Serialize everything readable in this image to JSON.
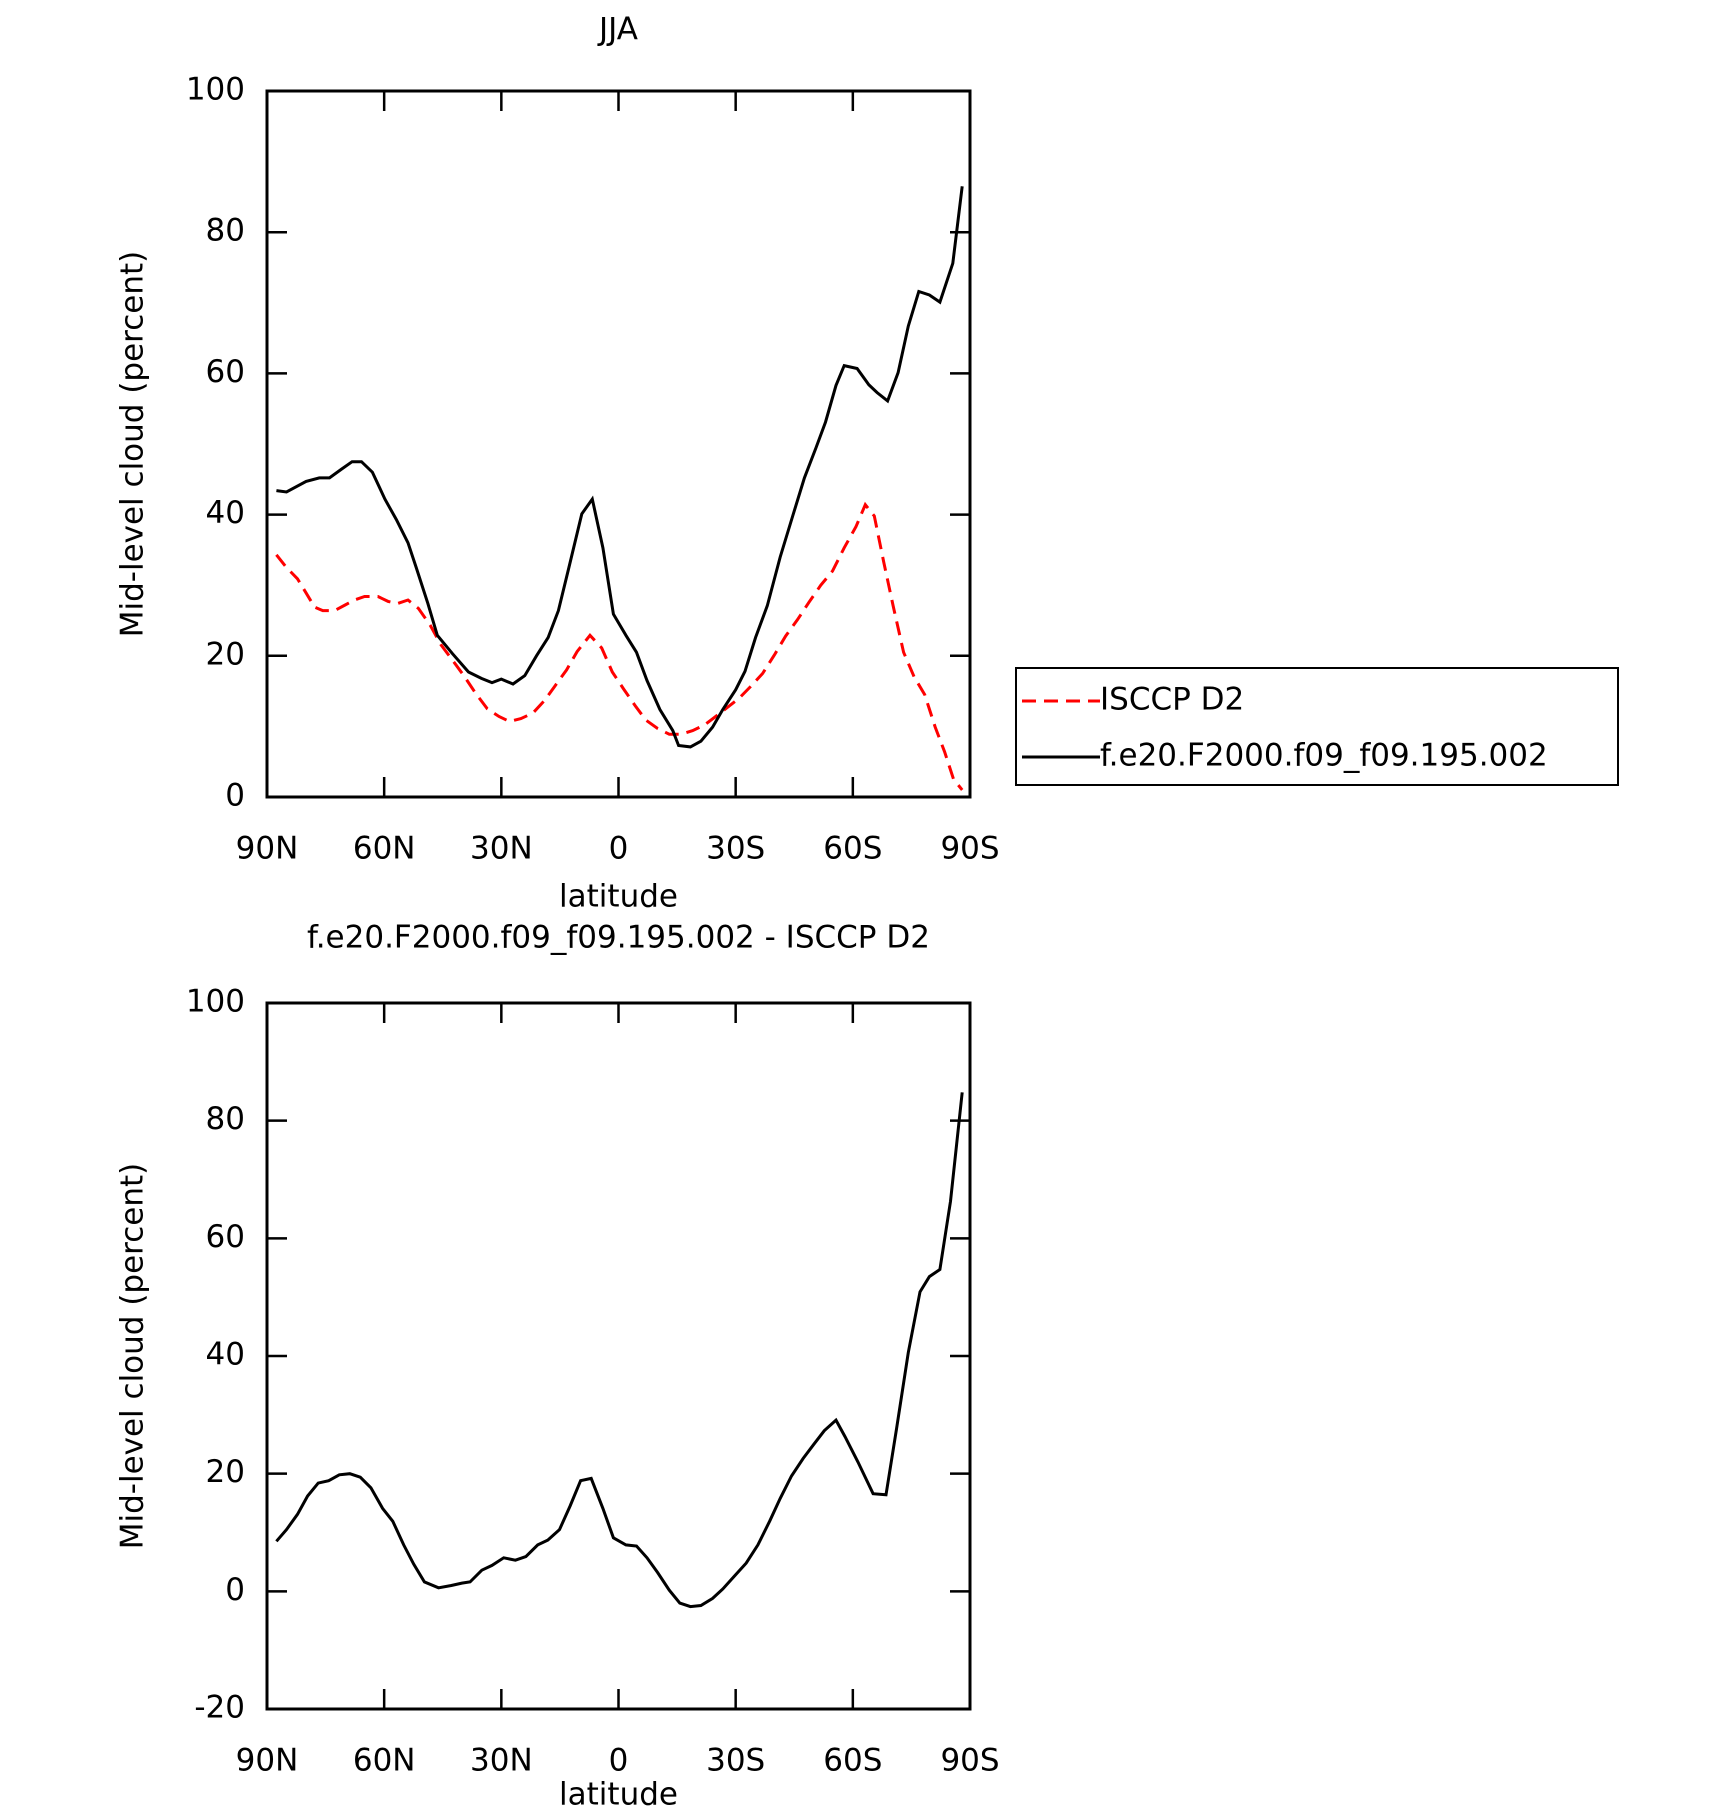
{
  "chart_data": [
    {
      "type": "line",
      "title": "JJA",
      "xlabel": "latitude",
      "ylabel": "Mid-level cloud (percent)",
      "xlim": [
        90,
        -90
      ],
      "ylim": [
        0,
        100
      ],
      "xticks": [
        {
          "value": 90,
          "label": "90N"
        },
        {
          "value": 60,
          "label": "60N"
        },
        {
          "value": 30,
          "label": "30N"
        },
        0,
        {
          "value": -30,
          "label": "30S"
        },
        {
          "value": -60,
          "label": "60S"
        },
        {
          "value": -90,
          "label": "90S"
        }
      ],
      "yticks": [
        0,
        20,
        40,
        60,
        80,
        100
      ],
      "legend": "outside-right",
      "series": [
        {
          "name": "ISCCP D2",
          "color": "#ff0000",
          "linestyle": "dashed",
          "x": [
            87.6,
            85,
            82.2,
            80.1,
            77.8,
            75.7,
            72.7,
            70,
            67.6,
            65,
            61.6,
            59,
            56.6,
            53.9,
            51.2,
            48.2,
            45.5,
            42.8,
            39.6,
            36.6,
            33.6,
            30.6,
            27.9,
            25,
            21.9,
            18.9,
            16.3,
            13.3,
            10.6,
            7.3,
            4.3,
            1.6,
            -1.3,
            -4.3,
            -7,
            -10,
            -13,
            -16,
            -19,
            -22,
            -24.9,
            -27.9,
            -30.9,
            -33.9,
            -36.9,
            -39.9,
            -42.8,
            -45.8,
            -48.8,
            -51.8,
            -54.8,
            -57.8,
            -60.8,
            -63.2,
            -65.5,
            -67.9,
            -70.3,
            -73,
            -75.7,
            -78.4,
            -81.1,
            -83.5,
            -85.8,
            -88
          ],
          "values": [
            34.3,
            32.5,
            30.9,
            29,
            26.9,
            26.4,
            26.4,
            27.2,
            27.9,
            28.4,
            28.4,
            27.7,
            27.4,
            27.9,
            26.7,
            24.3,
            21.6,
            19.6,
            17.2,
            14.7,
            12.5,
            11.4,
            10.7,
            11.1,
            11.9,
            13.7,
            15.7,
            18,
            20.6,
            22.9,
            21.1,
            17.7,
            15.3,
            12.9,
            10.9,
            9.7,
            8.9,
            8.9,
            9.4,
            10.2,
            11.4,
            12.7,
            14,
            15.7,
            17.5,
            20.1,
            22.8,
            25.1,
            27.6,
            30,
            32,
            35.3,
            38.3,
            41.4,
            39.8,
            33.3,
            27.1,
            20.5,
            17,
            14.5,
            9.9,
            6.4,
            2.5,
            1
          ]
        },
        {
          "name": "f.e20.F2000.f09_f09.195.002",
          "color": "#000000",
          "linestyle": "solid",
          "x": [
            87.6,
            85,
            80,
            76.6,
            74,
            71,
            68.2,
            65.8,
            63,
            59.8,
            56.9,
            53.9,
            51.8,
            48.8,
            46.4,
            42.5,
            38.4,
            35.1,
            32.4,
            30,
            27,
            24,
            21,
            18,
            15.4,
            12.7,
            9.4,
            6.7,
            4,
            1.3,
            -1.9,
            -4.6,
            -7.3,
            -10.6,
            -13.9,
            -15.4,
            -18.4,
            -21.1,
            -24.1,
            -26.7,
            -30,
            -32.4,
            -35.1,
            -38.1,
            -41.4,
            -44.6,
            -47.6,
            -50.6,
            -53,
            -55.7,
            -57.8,
            -61.1,
            -64.1,
            -66.2,
            -68.9,
            -71.6,
            -74.2,
            -76.9,
            -79.6,
            -82.3,
            -85.6,
            -88
          ],
          "values": [
            43.4,
            43.2,
            44.7,
            45.2,
            45.2,
            46.4,
            47.5,
            47.5,
            46,
            42.2,
            39.3,
            36,
            32.5,
            27.4,
            22.9,
            20.3,
            17.7,
            16.8,
            16.2,
            16.7,
            16,
            17.2,
            20,
            22.6,
            26.4,
            32.5,
            40.1,
            42.2,
            35.3,
            25.9,
            22.9,
            20.5,
            16.5,
            12.4,
            9.4,
            7.3,
            7.1,
            7.9,
            9.9,
            12.4,
            15.2,
            17.8,
            22.6,
            27.1,
            34,
            39.8,
            45.2,
            49.5,
            53.1,
            58.3,
            61.1,
            60.7,
            58.4,
            57.3,
            56.1,
            60.1,
            66.7,
            71.6,
            71.1,
            70.1,
            75.6,
            86.5
          ]
        }
      ]
    },
    {
      "type": "line",
      "title": "f.e20.F2000.f09_f09.195.002 - ISCCP D2",
      "xlabel": "latitude",
      "ylabel": "Mid-level cloud (percent)",
      "xlim": [
        90,
        -90
      ],
      "ylim": [
        -20,
        100
      ],
      "xticks": [
        {
          "value": 90,
          "label": "90N"
        },
        {
          "value": 60,
          "label": "60N"
        },
        {
          "value": 30,
          "label": "30N"
        },
        0,
        {
          "value": -30,
          "label": "30S"
        },
        {
          "value": -60,
          "label": "60S"
        },
        {
          "value": -90,
          "label": "90S"
        }
      ],
      "yticks": [
        -20,
        0,
        20,
        40,
        60,
        80,
        100
      ],
      "series": [
        {
          "color": "#000000",
          "linestyle": "solid",
          "x": [
            87.6,
            85,
            82.2,
            79.6,
            76.9,
            74.2,
            71.5,
            68.8,
            66.1,
            63.4,
            60.4,
            57.8,
            55,
            52.4,
            49.7,
            46.1,
            42.8,
            40.1,
            38,
            35,
            32.4,
            29.4,
            26.4,
            23.7,
            20.7,
            18.1,
            15.1,
            12.4,
            9.7,
            7,
            4,
            1.3,
            -1.9,
            -4.6,
            -7.3,
            -10,
            -13,
            -15.7,
            -18.4,
            -21.1,
            -24.1,
            -26.7,
            -29.7,
            -32.7,
            -35.7,
            -38.7,
            -41.4,
            -44.3,
            -47.3,
            -50,
            -52.7,
            -55.7,
            -58,
            -61.3,
            -65.2,
            -68.5,
            -71.2,
            -74.2,
            -77.2,
            -79.6,
            -82.3,
            -85,
            -88
          ],
          "values": [
            8.5,
            10.5,
            13.1,
            16.2,
            18.4,
            18.8,
            19.8,
            20,
            19.4,
            17.6,
            14.1,
            11.9,
            7.9,
            4.6,
            1.6,
            0.6,
            1,
            1.4,
            1.6,
            3.6,
            4.4,
            5.7,
            5.3,
            5.9,
            7.9,
            8.7,
            10.5,
            14.5,
            18.8,
            19.2,
            14.1,
            9.1,
            7.9,
            7.7,
            5.7,
            3.2,
            0.2,
            -2,
            -2.6,
            -2.4,
            -1.2,
            0.4,
            2.6,
            4.8,
            7.9,
            11.9,
            15.8,
            19.6,
            22.6,
            25,
            27.3,
            29.1,
            26.3,
            22,
            16.6,
            16.4,
            27.7,
            40.6,
            50.9,
            53.5,
            54.7,
            66.3,
            84.8
          ]
        }
      ]
    }
  ]
}
